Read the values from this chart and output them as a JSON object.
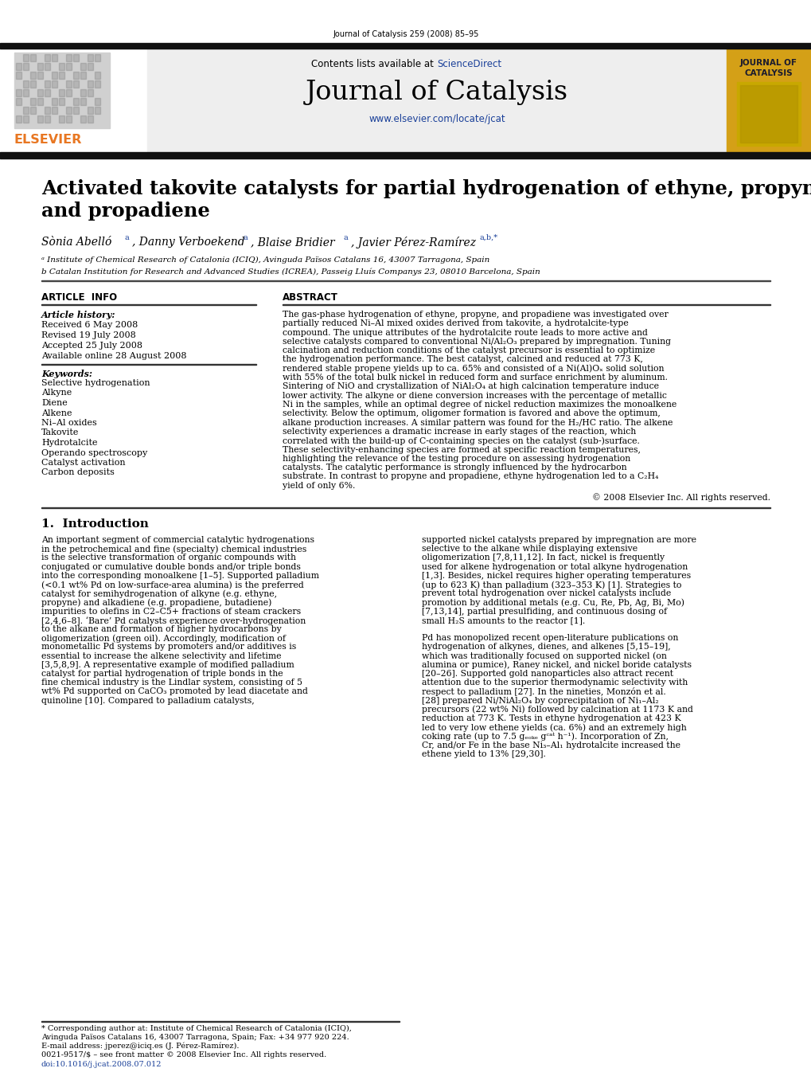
{
  "page_title_small": "Journal of Catalysis 259 (2008) 85–95",
  "journal_name": "Journal of Catalysis",
  "journal_url": "www.elsevier.com/locate/jcat",
  "contents_text": "Contents lists available at ",
  "science_direct": "ScienceDirect",
  "article_title_line1": "Activated takovite catalysts for partial hydrogenation of ethyne, propyne,",
  "article_title_line2": "and propadiene",
  "author_line": "Sònia Abelló",
  "author_line2": ", Danny Verboekend",
  "author_line3": ", Blaise Bridier",
  "author_line4": ", Javier Pérez-Ramírez",
  "affiliation_a": "ᵃ Institute of Chemical Research of Catalonia (ICIQ), Avinguda Països Catalans 16, 43007 Tarragona, Spain",
  "affiliation_b": "b Catalan Institution for Research and Advanced Studies (ICREA), Passeig Lluís Companys 23, 08010 Barcelona, Spain",
  "article_info_header": "ARTICLE  INFO",
  "abstract_header": "ABSTRACT",
  "article_history_label": "Article history:",
  "received": "Received 6 May 2008",
  "revised": "Revised 19 July 2008",
  "accepted": "Accepted 25 July 2008",
  "available": "Available online 28 August 2008",
  "keywords_label": "Keywords:",
  "keywords": [
    "Selective hydrogenation",
    "Alkyne",
    "Diene",
    "Alkene",
    "Ni–Al oxides",
    "Takovite",
    "Hydrotalcite",
    "Operando spectroscopy",
    "Catalyst activation",
    "Carbon deposits"
  ],
  "abstract_text": "The gas-phase hydrogenation of ethyne, propyne, and propadiene was investigated over partially reduced Ni–Al mixed oxides derived from takovite, a hydrotalcite-type compound. The unique attributes of the hydrotalcite route leads to more active and selective catalysts compared to conventional Ni/Al₂O₃ prepared by impregnation. Tuning calcination and reduction conditions of the catalyst precursor is essential to optimize the hydrogenation performance. The best catalyst, calcined and reduced at 773 K, rendered stable propene yields up to ca. 65% and consisted of a Ni(Al)Oₓ solid solution with 55% of the total bulk nickel in reduced form and surface enrichment by aluminum. Sintering of NiO and crystallization of NiAl₂O₄ at high calcination temperature induce lower activity. The alkyne or diene conversion increases with the percentage of metallic Ni in the samples, while an optimal degree of nickel reduction maximizes the monoalkene selectivity. Below the optimum, oligomer formation is favored and above the optimum, alkane production increases. A similar pattern was found for the H₂/HC ratio. The alkene selectivity experiences a dramatic increase in early stages of the reaction, which correlated with the build-up of C-containing species on the catalyst (sub-)surface. These selectivity-enhancing species are formed at specific reaction temperatures, highlighting the relevance of the testing procedure on assessing hydrogenation catalysts. The catalytic performance is strongly influenced by the hydrocarbon substrate. In contrast to propyne and propadiene, ethyne hydrogenation led to a C₂H₄ yield of only 6%.",
  "abstract_copyright": "© 2008 Elsevier Inc. All rights reserved.",
  "intro_header": "1.  Introduction",
  "intro_text_col1": "An important segment of commercial catalytic hydrogenations in the petrochemical and fine (specialty) chemical industries is the selective transformation of organic compounds with conjugated or cumulative double bonds and/or triple bonds into the corresponding monoalkene [1–5]. Supported palladium (<0.1 wt% Pd on low-surface-area alumina) is the preferred catalyst for semihydrogenation of alkyne (e.g. ethyne, propyne) and alkadiene (e.g. propadiene, butadiene) impurities to olefins in C2–C5+ fractions of steam crackers [2,4,6–8]. ‘Bare’ Pd catalysts experience over-hydrogenation to the alkane and formation of higher hydrocarbons by oligomerization (green oil). Accordingly, modification of monometallic Pd systems by promoters and/or additives is essential to increase the alkene selectivity and lifetime [3,5,8,9]. A representative example of modified palladium catalyst for partial hydrogenation of triple bonds in the fine chemical industry is the Lindlar system, consisting of 5 wt% Pd supported on CaCO₃ promoted by lead diacetate and quinoline [10]. Compared to palladium catalysts,",
  "intro_text_col2": "supported nickel catalysts prepared by impregnation are more selective to the alkane while displaying extensive oligomerization [7,8,11,12]. In fact, nickel is frequently used for alkene hydrogenation or total alkyne hydrogenation [1,3]. Besides, nickel requires higher operating temperatures (up to 623 K) than palladium (323–353 K) [1]. Strategies to prevent total hydrogenation over nickel catalysts include promotion by additional metals (e.g. Cu, Re, Pb, Ag, Bi, Mo) [7,13,14], partial presulfiding, and continuous dosing of small H₂S amounts to the reactor [1].\n\nPd has monopolized recent open-literature publications on hydrogenation of alkynes, dienes, and alkenes [5,15–19], which was traditionally focused on supported nickel (on alumina or pumice), Raney nickel, and nickel boride catalysts [20–26]. Supported gold nanoparticles also attract recent attention due to the superior thermodynamic selectivity with respect to palladium [27]. In the nineties, Monzón et al. [28] prepared Ni/NiAl₂O₄ by coprecipitation of Ni₁–Al₂ precursors (22 wt% Ni) followed by calcination at 1173 K and reduction at 773 K. Tests in ethyne hydrogenation at 423 K led to very low ethene yields (ca. 6%) and an extremely high coking rate (up to 7.5 gₑₒₖₑ gᶜᵃᵗ h⁻¹). Incorporation of Zn, Cr, and/or Fe in the base Ni₃–Al₁ hydrotalcite increased the ethene yield to 13% [29,30].",
  "footnote_line1": "* Corresponding author at: Institute of Chemical Research of Catalonia (ICIQ),",
  "footnote_line2": "Avinguda Països Catalans 16, 43007 Tarragona, Spain; Fax: +34 977 920 224.",
  "footnote_email": "E-mail address: jperez@iciq.es (J. Pérez-Ramírez).",
  "issn_line": "0021-9517/$ – see front matter © 2008 Elsevier Inc. All rights reserved.",
  "doi_line": "doi:10.1016/j.jcat.2008.07.012",
  "header_bg": "#eeeeee",
  "journal_yellow": "#d4a017",
  "elsevier_orange": "#e87722",
  "top_bar_color": "#111111",
  "link_color": "#1a4099",
  "text_color": "#000000",
  "bg_color": "#ffffff"
}
